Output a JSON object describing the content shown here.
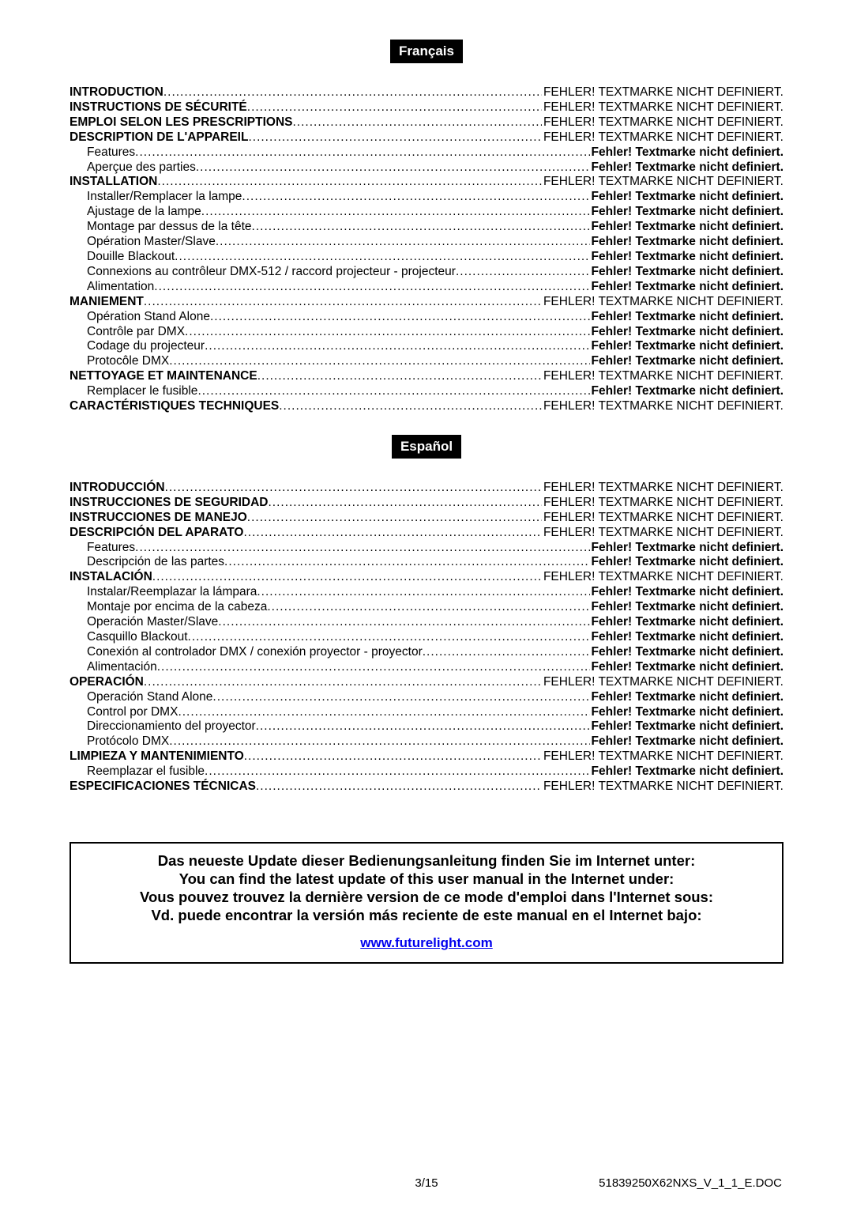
{
  "colors": {
    "bg": "#ffffff",
    "text": "#000000",
    "badge_bg": "#000000",
    "badge_fg": "#ffffff",
    "link": "#0000ee"
  },
  "typography": {
    "base_font": "Arial",
    "toc_fontsize_pt": 11.5,
    "badge_fontsize_pt": 13,
    "infobox_fontsize_pt": 14,
    "line_height": 1.22
  },
  "error_main": "FEHLER! TEXTMARKE NICHT DEFINIERT.",
  "error_sub": "Fehler! Textmarke nicht definiert.",
  "sections": [
    {
      "lang_label": "Français",
      "entries": [
        {
          "level": "main",
          "label": "INTRODUCTION"
        },
        {
          "level": "main",
          "label": "INSTRUCTIONS DE SÉCURITÉ"
        },
        {
          "level": "main",
          "label": "EMPLOI SELON LES PRESCRIPTIONS"
        },
        {
          "level": "main",
          "label": "DESCRIPTION DE L'APPAREIL"
        },
        {
          "level": "sub",
          "label": "Features"
        },
        {
          "level": "sub",
          "label": "Aperçue des parties"
        },
        {
          "level": "main",
          "label": "INSTALLATION"
        },
        {
          "level": "sub",
          "label": "Installer/Remplacer la lampe"
        },
        {
          "level": "sub",
          "label": "Ajustage de la lampe"
        },
        {
          "level": "sub",
          "label": "Montage par dessus de la tête"
        },
        {
          "level": "sub",
          "label": "Opération Master/Slave"
        },
        {
          "level": "sub",
          "label": "Douille Blackout"
        },
        {
          "level": "sub",
          "label": "Connexions au contrôleur DMX-512 / raccord projecteur - projecteur"
        },
        {
          "level": "sub",
          "label": "Alimentation"
        },
        {
          "level": "main",
          "label": "MANIEMENT"
        },
        {
          "level": "sub",
          "label": "Opération Stand Alone"
        },
        {
          "level": "sub",
          "label": "Contrôle par DMX"
        },
        {
          "level": "sub",
          "label": "Codage du projecteur"
        },
        {
          "level": "sub",
          "label": "Protocôle DMX"
        },
        {
          "level": "main",
          "label": "NETTOYAGE ET MAINTENANCE"
        },
        {
          "level": "sub",
          "label": "Remplacer le fusible"
        },
        {
          "level": "main",
          "label": "CARACTÉRISTIQUES TECHNIQUES"
        }
      ]
    },
    {
      "lang_label": "Español",
      "entries": [
        {
          "level": "main",
          "label": "INTRODUCCIÓN"
        },
        {
          "level": "main",
          "label": "INSTRUCCIONES DE SEGURIDAD"
        },
        {
          "level": "main",
          "label": "INSTRUCCIONES DE MANEJO"
        },
        {
          "level": "main",
          "label": "DESCRIPCIÓN DEL APARATO"
        },
        {
          "level": "sub",
          "label": "Features"
        },
        {
          "level": "sub",
          "label": "Descripción de las partes"
        },
        {
          "level": "main",
          "label": "INSTALACIÓN"
        },
        {
          "level": "sub",
          "label": "Instalar/Reemplazar la lámpara"
        },
        {
          "level": "sub",
          "label": "Montaje por encima de la cabeza"
        },
        {
          "level": "sub",
          "label": "Operación Master/Slave"
        },
        {
          "level": "sub",
          "label": "Casquillo Blackout"
        },
        {
          "level": "sub",
          "label": "Conexión al controlador DMX / conexión proyector - proyector"
        },
        {
          "level": "sub",
          "label": "Alimentación"
        },
        {
          "level": "main",
          "label": "OPERACIÓN"
        },
        {
          "level": "sub",
          "label": "Operación Stand Alone"
        },
        {
          "level": "sub",
          "label": "Control por DMX"
        },
        {
          "level": "sub",
          "label": "Direccionamiento del proyector"
        },
        {
          "level": "sub",
          "label": "Protócolo DMX"
        },
        {
          "level": "main",
          "label": "LIMPIEZA Y MANTENIMIENTO"
        },
        {
          "level": "sub",
          "label": "Reemplazar el fusible"
        },
        {
          "level": "main",
          "label": "ESPECIFICACIONES TÉCNICAS"
        }
      ]
    }
  ],
  "infobox": {
    "lines": [
      "Das neueste Update dieser Bedienungsanleitung finden Sie im Internet unter:",
      "You can find the latest update of this user manual in the Internet under:",
      "Vous pouvez trouvez la dernière version de ce mode d'emploi dans l'Internet sous:",
      "Vd. puede encontrar la versión más reciente de este manual en el Internet bajo:"
    ],
    "link_text": "www.futurelight.com"
  },
  "footer": {
    "page": "3/15",
    "doc": "51839250X62NXS_V_1_1_E.DOC"
  }
}
